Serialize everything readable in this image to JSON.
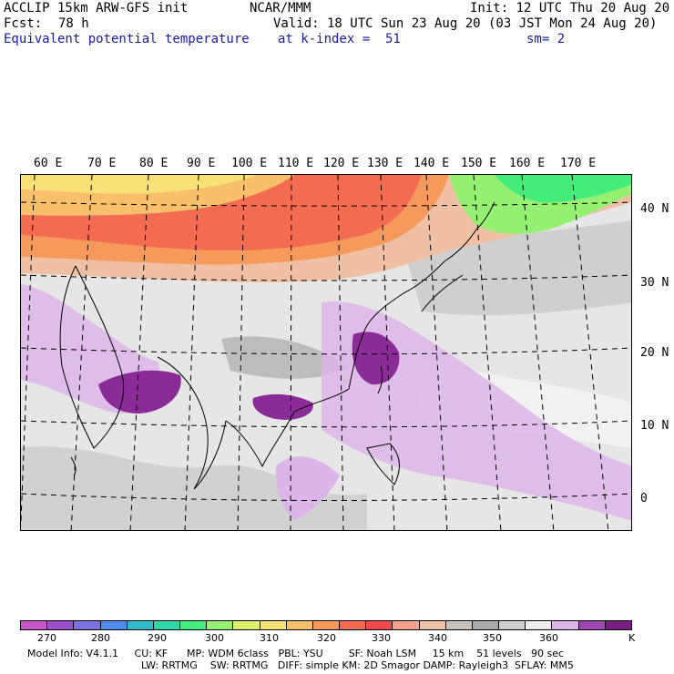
{
  "header": {
    "model": "ACCLIP 15km ARW-GFS init",
    "org": "NCAR/MMM",
    "init": "Init: 12 UTC Thu 20 Aug 20",
    "fcst_label": "Fcst:",
    "fcst_value": "78 h",
    "valid": "Valid: 18 UTC Sun 23 Aug 20 (03 JST Mon 24 Aug 20)",
    "field": "Equivalent potential temperature",
    "level": "at k-index =  51",
    "smooth": "sm= 2"
  },
  "map": {
    "lon_labels": [
      "60 E",
      "70 E",
      "80 E",
      "90 E",
      "100 E",
      "110 E",
      "120 E",
      "130 E",
      "140 E",
      "150 E",
      "160 E",
      "170 E"
    ],
    "lat_labels": [
      "40 N",
      "30 N",
      "20 N",
      "10 N",
      "0"
    ]
  },
  "colorbar": {
    "colors": [
      "#c755c7",
      "#9a4ec9",
      "#7b74e0",
      "#4f8cec",
      "#2fbcc8",
      "#2fd6a8",
      "#44ec7c",
      "#96f072",
      "#dff06a",
      "#f8e276",
      "#f8c06a",
      "#f59a5b",
      "#f36c52",
      "#f24a4a",
      "#f3a08c",
      "#efc0a4",
      "#c9c2bb",
      "#a9a9a9",
      "#cfcfcf",
      "#ededed",
      "#dcb6e8",
      "#a048b2",
      "#7a1e84"
    ],
    "labels": [
      "270",
      "280",
      "290",
      "300",
      "310",
      "320",
      "330",
      "340",
      "350",
      "360"
    ],
    "unit": "K"
  },
  "info": {
    "line1": "Model Info: V4.1.1     CU: KF      MP: WDM 6class   PBL: YSU        SF: Noah LSM     15 km    51 levels   90 sec",
    "line2": "LW: RRTMG    SW: RRTMG   DIFF: simple KM: 2D Smagor DAMP: Rayleigh3  SFLAY: MM5"
  },
  "colors": {
    "header_blue": "#1a1aa8",
    "warm_band": "#f36c52",
    "purple_core": "#8a2b98",
    "light_purple": "#dcb6e8",
    "background_gray": "#e9e9e9"
  }
}
